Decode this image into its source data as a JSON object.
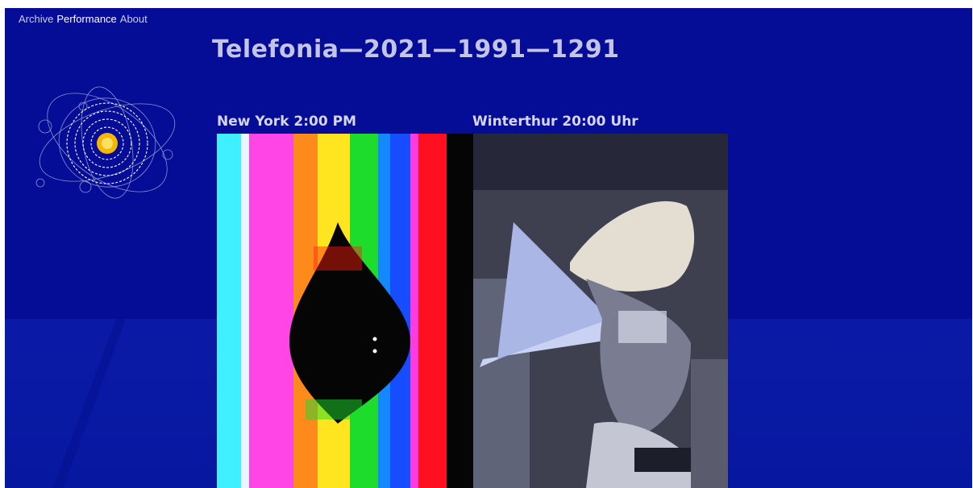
{
  "nav": {
    "items": [
      {
        "label": "Archive",
        "active": false
      },
      {
        "label": "Performance",
        "active": true
      },
      {
        "label": "About",
        "active": false
      }
    ]
  },
  "page_title": "Telefonia—2021—1991—1291",
  "streams": [
    {
      "label": "New York 2:00 PM"
    },
    {
      "label": "Winterthur 20:00 Uhr"
    }
  ],
  "colors": {
    "background": "#050c96",
    "title": "#c3c4e6",
    "nav_text": "#c9cde9",
    "nav_active": "#ffffff",
    "logo_core": "#f5b800"
  },
  "icons": {
    "logo": "particle-orbit-logo-icon"
  }
}
